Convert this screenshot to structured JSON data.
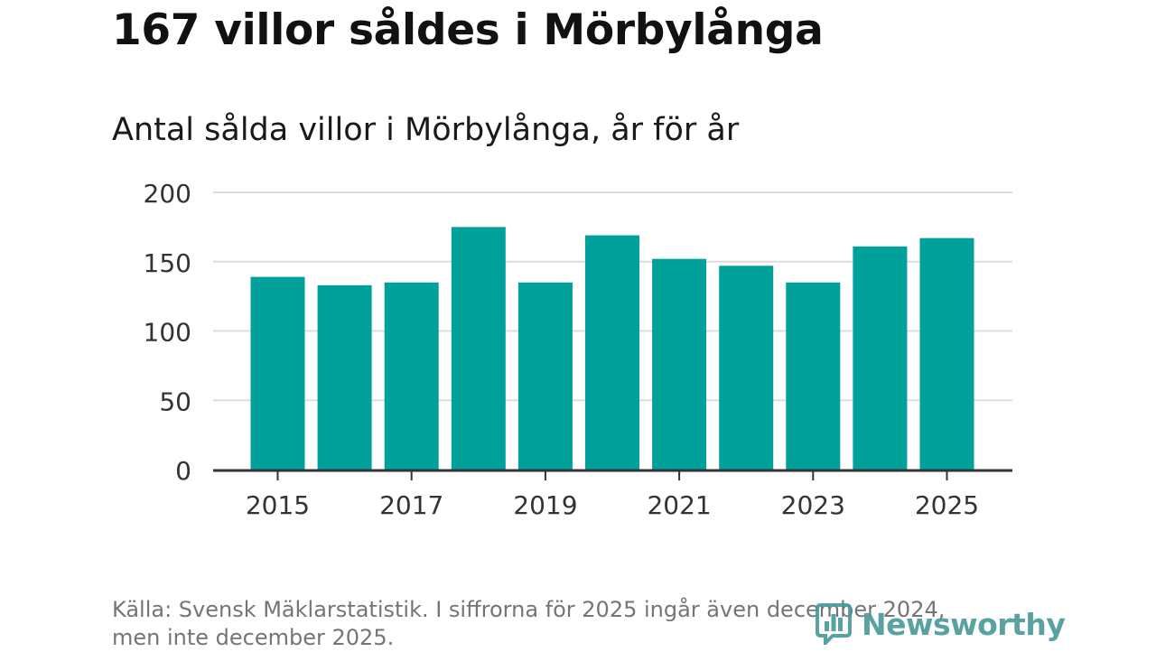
{
  "headline": "167 villor såldes i Mörbylånga",
  "chart_data": {
    "type": "bar",
    "title": "Antal sålda villor i Mörbylånga, år för år",
    "xlabel": "",
    "ylabel": "",
    "categories": [
      "2015",
      "2016",
      "2017",
      "2018",
      "2019",
      "2020",
      "2021",
      "2022",
      "2023",
      "2024",
      "2025"
    ],
    "values": [
      139,
      133,
      135,
      175,
      135,
      169,
      152,
      147,
      135,
      161,
      167
    ],
    "x_tick_labels": [
      "2015",
      "2017",
      "2019",
      "2021",
      "2023",
      "2025"
    ],
    "y_ticks": [
      0,
      50,
      100,
      150,
      200
    ],
    "ylim": [
      0,
      200
    ],
    "grid": true,
    "bar_color": "#00a19a"
  },
  "source": {
    "line1": "Källa: Svensk Mäklarstatistik. I siffrorna för 2025 ingår även december 2024,",
    "line2": "men inte december 2025."
  },
  "logo": {
    "text": "Newsworthy",
    "icon": "bar-chart-logo-icon",
    "color": "#4a9b9a"
  },
  "colors": {
    "grid": "#dddddd",
    "axis": "#333333",
    "tick_text": "#333333"
  }
}
